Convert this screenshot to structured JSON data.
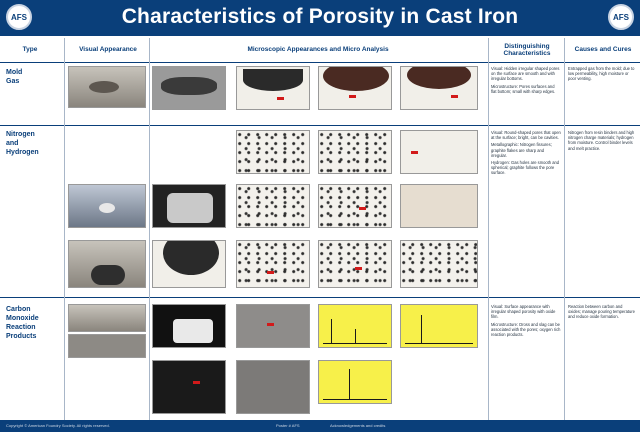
{
  "header": {
    "title": "Characteristics of Porosity in Cast Iron",
    "logo_left": "AFS",
    "logo_right": "AFS"
  },
  "columns": {
    "type": "Type",
    "visual": "Visual Appearance",
    "micro": "Microscopic Appearances and Micro Analysis",
    "distinguishing": "Distinguishing Characteristics",
    "causes": "Causes and Cures"
  },
  "rows": [
    {
      "label_lines": [
        "Mold",
        "Gas"
      ],
      "distinguishing": [
        "Visual: Hidden irregular shaped pores on the surface are smooth and with irregular bottoms.",
        "Microstructure: Pores surfaces and flat bottom; small with sharp edges."
      ],
      "causes": "Entrapped gas from the mold; due to low permeability, high moisture or poor venting."
    },
    {
      "label_lines": [
        "Nitrogen",
        "and",
        "Hydrogen"
      ],
      "distinguishing": [
        "Visual: Round-shaped pores that open at the surface; bright, can be cavities.",
        "Metallographic: Nitrogen fissures; graphite flakes are sharp and irregular.",
        "Hydrogen: Gas holes are smooth and spherical; graphite follows the pore surface."
      ],
      "causes": "Nitrogen from resin binders and high nitrogen charge materials; hydrogen from moisture. Control binder levels and melt practice."
    },
    {
      "label_lines": [
        "Carbon",
        "Monoxide",
        "Reaction",
        "Products"
      ],
      "distinguishing": [
        "Visual: Surface appearance with irregular shaped porosity with oxide film.",
        "Microstructure: Dross and slag can be associated with the pores; oxygen rich reaction products."
      ],
      "causes": "Reaction between carbon and oxides; manage pouring temperature and reduce oxide formation."
    }
  ],
  "footer": {
    "left_text": "Copyright © American Foundry Society. All rights reserved.",
    "center_text": "Poster # AFS",
    "right_text": "Acknowledgements and credits"
  },
  "colors": {
    "brand": "#0a3f7a",
    "marker": "#d21a1a",
    "analysis": "#f7f04a"
  }
}
